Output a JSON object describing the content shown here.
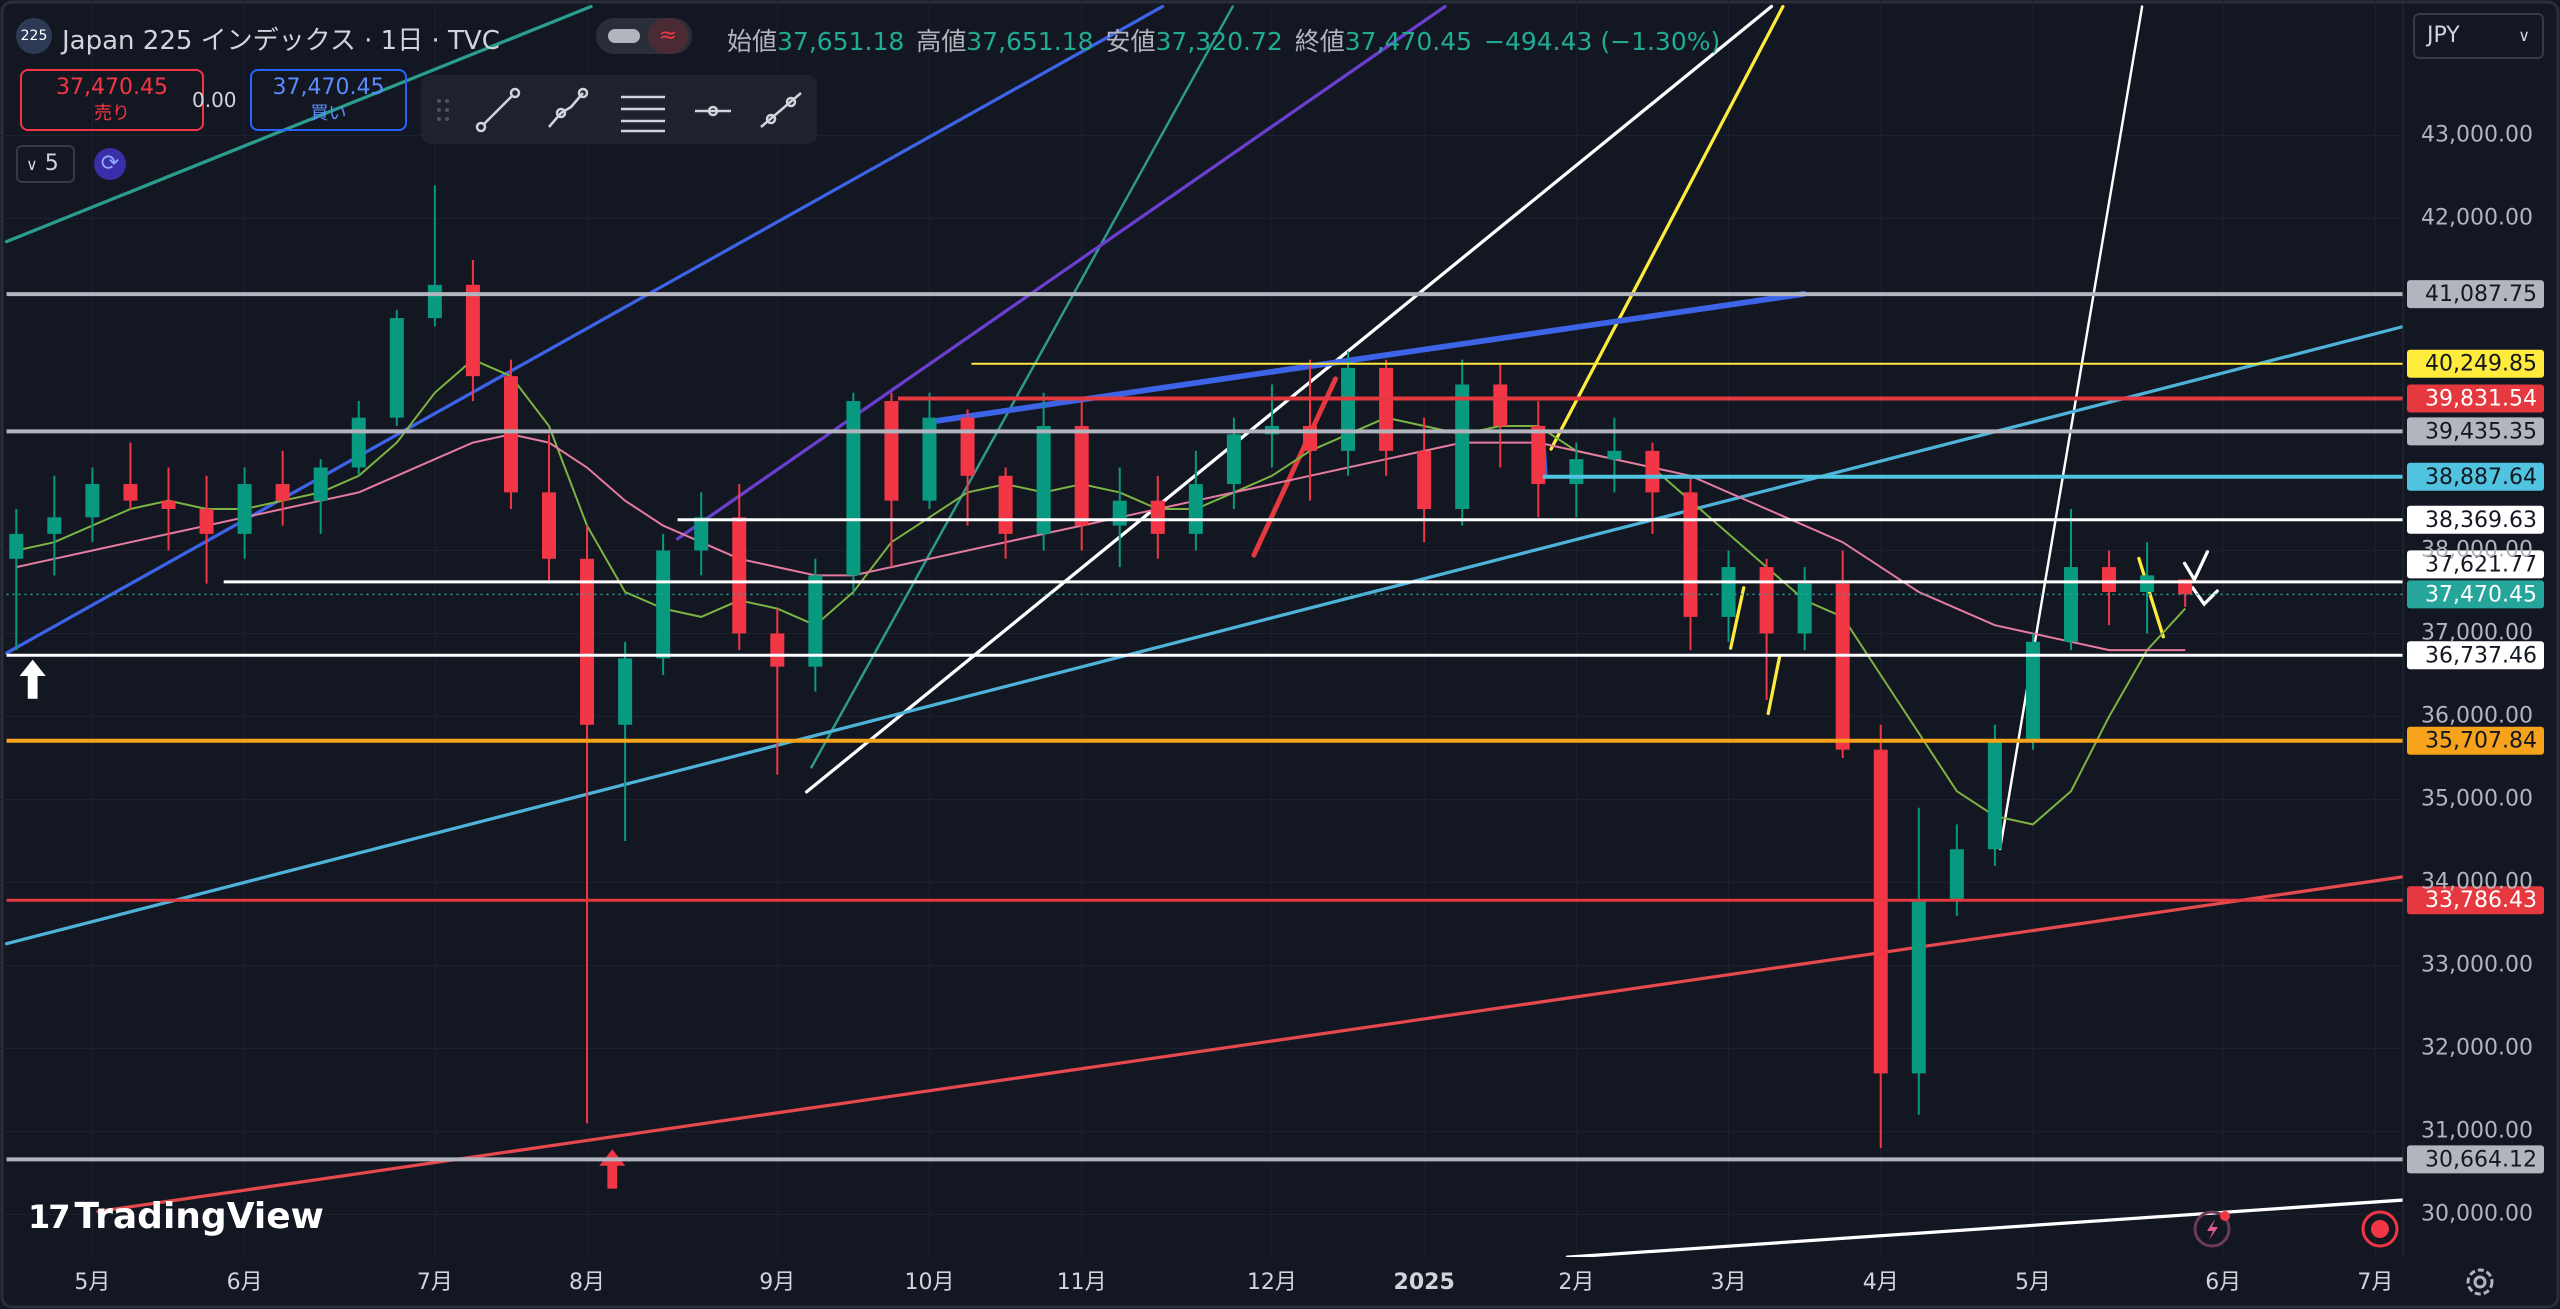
{
  "header": {
    "logo": "225",
    "title": "Japan 225 インデックス · 1日 · TVC",
    "ohlc": [
      {
        "label": "始値",
        "value": "37,651.18"
      },
      {
        "label": "高値",
        "value": "37,651.18"
      },
      {
        "label": "安値",
        "value": "37,320.72"
      },
      {
        "label": "終値",
        "value": "37,470.45"
      }
    ],
    "change": "−494.43 (−1.30%)"
  },
  "trade_panel": {
    "sell_price": "37,470.45",
    "sell_label": "売り",
    "spread": "0.00",
    "buy_price": "37,470.45",
    "buy_label": "買い",
    "interval_count": "5"
  },
  "currency": "JPY",
  "watermark": "TradingView",
  "chart_data": {
    "type": "candlestick",
    "categories": [
      null,
      null,
      "5月",
      null,
      null,
      null,
      "6月",
      null,
      null,
      null,
      null,
      "7月",
      null,
      null,
      null,
      "8月",
      null,
      null,
      null,
      null,
      "9月",
      null,
      null,
      null,
      "10月",
      null,
      null,
      null,
      "11月",
      null,
      null,
      null,
      null,
      "12月",
      null,
      null,
      null,
      "2025",
      null,
      null,
      null,
      "2月",
      null,
      null,
      null,
      "3月",
      null,
      null,
      null,
      "4月",
      null,
      null,
      null,
      "5月",
      null,
      null,
      null,
      null,
      "6月",
      null,
      null,
      null,
      "7月"
    ],
    "open": [
      37900,
      38200,
      38400,
      38800,
      38600,
      38500,
      38200,
      38800,
      38600,
      39000,
      39600,
      40800,
      41200,
      40100,
      38700,
      37900,
      35900,
      36700,
      38000,
      38400,
      37000,
      36600,
      37700,
      39800,
      38600,
      39600,
      38900,
      38200,
      39500,
      38300,
      38600,
      38200,
      38800,
      39400,
      39500,
      39200,
      40200,
      39200,
      38500,
      40000,
      39500,
      38800,
      39100,
      39200,
      38700,
      37200,
      37800,
      37000,
      37600,
      35600,
      31700,
      33800,
      34400,
      35700,
      36900,
      37800,
      37500,
      37651.18,
      null,
      null,
      null,
      null,
      null
    ],
    "high": [
      38500,
      38900,
      39000,
      39300,
      39000,
      38900,
      39000,
      39200,
      39100,
      39800,
      40900,
      42400,
      41500,
      40300,
      39400,
      38300,
      36900,
      38200,
      38700,
      38800,
      37300,
      37900,
      39900,
      39900,
      39900,
      39700,
      39000,
      39900,
      39800,
      39000,
      38900,
      39200,
      39600,
      40000,
      40300,
      40400,
      40300,
      39600,
      40300,
      40250,
      39800,
      39300,
      39600,
      39300,
      38900,
      38000,
      37900,
      37800,
      38000,
      35900,
      34900,
      34700,
      35900,
      37000,
      38500,
      38000,
      38100,
      37651.18,
      null,
      null,
      null,
      null,
      null
    ],
    "low": [
      36800,
      37700,
      38100,
      38500,
      38000,
      37600,
      37900,
      38300,
      38200,
      38900,
      39500,
      40700,
      39800,
      38500,
      37600,
      31100,
      34500,
      36500,
      37700,
      36800,
      35300,
      36300,
      37500,
      37800,
      38500,
      38300,
      37900,
      38000,
      38000,
      37800,
      37900,
      38000,
      38500,
      39000,
      38600,
      38900,
      38900,
      38100,
      38300,
      39000,
      38400,
      38400,
      38700,
      38200,
      36800,
      36900,
      36200,
      36800,
      35500,
      30800,
      31200,
      33600,
      34200,
      35600,
      36800,
      37100,
      37000,
      37320.72,
      null,
      null,
      null,
      null,
      null
    ],
    "close": [
      38200,
      38400,
      38800,
      38600,
      38500,
      38200,
      38800,
      38600,
      39000,
      39600,
      40800,
      41200,
      40100,
      38700,
      37900,
      35900,
      36700,
      38000,
      38400,
      37000,
      36600,
      37700,
      39800,
      38600,
      39600,
      38900,
      38200,
      39500,
      38300,
      38600,
      38200,
      38800,
      39400,
      39500,
      39200,
      40200,
      39200,
      38500,
      40000,
      39500,
      38800,
      39100,
      39200,
      38700,
      37200,
      37800,
      37000,
      37600,
      35600,
      31700,
      33800,
      34400,
      35700,
      36900,
      37800,
      37500,
      37700,
      37470.45,
      null,
      null,
      null,
      null,
      null
    ],
    "up_color": "#089981",
    "down_color": "#f23645",
    "lines": [
      {
        "color": "#7cb342",
        "values": [
          38000,
          38100,
          38300,
          38500,
          38600,
          38500,
          38500,
          38600,
          38700,
          38900,
          39300,
          39900,
          40300,
          40100,
          39500,
          38300,
          37500,
          37300,
          37200,
          37400,
          37300,
          37100,
          37500,
          38100,
          38400,
          38700,
          38800,
          38700,
          38800,
          38700,
          38500,
          38500,
          38700,
          38900,
          39200,
          39400,
          39600,
          39500,
          39400,
          39500,
          39500,
          39200,
          39100,
          39000,
          38600,
          38200,
          37800,
          37400,
          37200,
          36500,
          35800,
          35100,
          34800,
          34700,
          35100,
          36000,
          36800,
          37300,
          null,
          null,
          null,
          null,
          null
        ]
      },
      {
        "color": "#e57ca0",
        "values": [
          37800,
          37900,
          38000,
          38100,
          38200,
          38300,
          38400,
          38500,
          38600,
          38700,
          38900,
          39100,
          39300,
          39400,
          39300,
          39000,
          38600,
          38300,
          38100,
          37900,
          37800,
          37700,
          37700,
          37800,
          37900,
          38000,
          38100,
          38200,
          38300,
          38400,
          38500,
          38600,
          38700,
          38800,
          38900,
          39000,
          39100,
          39200,
          39300,
          39300,
          39300,
          39200,
          39100,
          39000,
          38900,
          38700,
          38500,
          38300,
          38100,
          37800,
          37500,
          37300,
          37100,
          37000,
          36900,
          36800,
          36800,
          36800,
          null,
          null,
          null,
          null,
          null
        ]
      }
    ],
    "ylim": [
      29488,
      44632
    ],
    "yticks": [
      {
        "value": 43000,
        "label": "43,000.00"
      },
      {
        "value": 42000,
        "label": "42,000.00"
      },
      {
        "value": 38000,
        "label": "38,000.00"
      },
      {
        "value": 37000,
        "label": "37,000.00"
      },
      {
        "value": 36000,
        "label": "36,000.00"
      },
      {
        "value": 35000,
        "label": "35,000.00"
      },
      {
        "value": 34000,
        "label": "34,000.00"
      },
      {
        "value": 33000,
        "label": "33,000.00"
      },
      {
        "value": 32000,
        "label": "32,000.00"
      },
      {
        "value": 31000,
        "label": "31,000.00"
      },
      {
        "value": 30000,
        "label": "30,000.00"
      }
    ],
    "grid": true,
    "levels": [
      {
        "value": 41087.75,
        "label": "41,087.75",
        "color": "#b2b5be",
        "label_color": "#131722"
      },
      {
        "value": 40249.85,
        "label": "40,249.85",
        "color": "#ffeb3b",
        "label_color": "#131722"
      },
      {
        "value": 39831.54,
        "label": "39,831.54",
        "color": "#e5393f",
        "label_color": "#ffffff"
      },
      {
        "value": 39435.35,
        "label": "39,435.35",
        "color": "#b2b5be",
        "label_color": "#131722"
      },
      {
        "value": 38887.64,
        "label": "38,887.64",
        "color": "#4fc3e0",
        "label_color": "#131722"
      },
      {
        "value": 38369.63,
        "label": "38,369.63",
        "color": "#ffffff",
        "label_color": "#131722"
      },
      {
        "value": 37621.77,
        "label": "37,621.77",
        "color": "#ffffff",
        "label_color": "#131722"
      },
      {
        "value": 37470.45,
        "label": "37,470.45",
        "color": "#26a69a",
        "label_color": "#ffffff"
      },
      {
        "value": 36737.46,
        "label": "36,737.46",
        "color": "#ffffff",
        "label_color": "#131722"
      },
      {
        "value": 35707.84,
        "label": "35,707.84",
        "color": "#f7a21b",
        "label_color": "#131722"
      },
      {
        "value": 33786.43,
        "label": "33,786.43",
        "color": "#e5393f",
        "label_color": "#ffffff"
      },
      {
        "value": 30664.12,
        "label": "30,664.12",
        "color": "#b2b5be",
        "label_color": "#131722"
      }
    ]
  }
}
